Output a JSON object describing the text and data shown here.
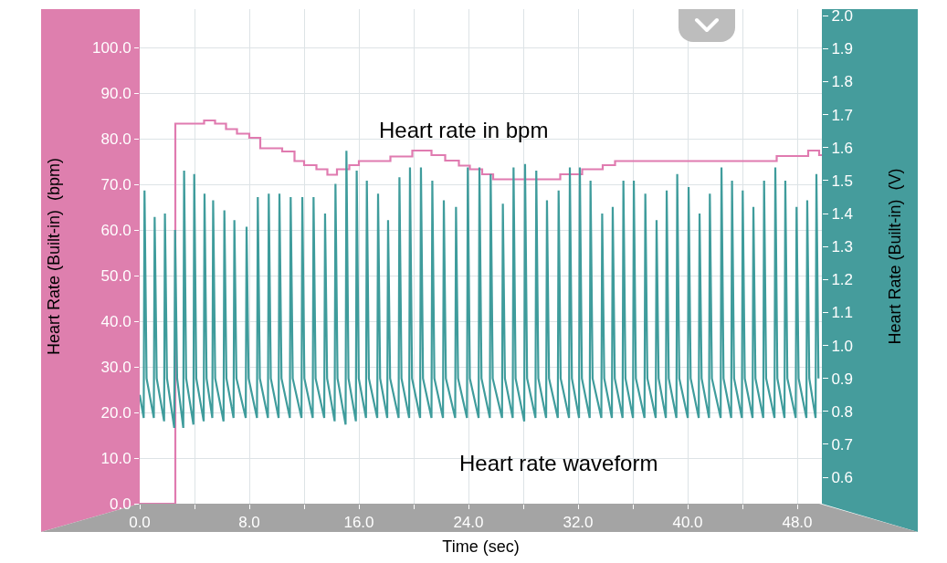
{
  "chart_data": {
    "type": "line",
    "xlabel": "Time (sec)",
    "ylabel": "Heart Rate (Built-in)  (bpm)",
    "y2label": "Heart Rate (Built-in)  (V)",
    "annotations": [
      "Heart rate in bpm",
      "Heart rate waveform"
    ],
    "xlim": [
      0,
      49.8
    ],
    "ylim": [
      0,
      108.4
    ],
    "y2lim": [
      0.52,
      2.02
    ],
    "xticks": [
      {
        "value": 0,
        "label": "0.0"
      },
      {
        "value": 4,
        "label": null
      },
      {
        "value": 8,
        "label": "8.0"
      },
      {
        "value": 12,
        "label": null
      },
      {
        "value": 16,
        "label": "16.0"
      },
      {
        "value": 20,
        "label": null
      },
      {
        "value": 24,
        "label": "24.0"
      },
      {
        "value": 28,
        "label": null
      },
      {
        "value": 32,
        "label": "32.0"
      },
      {
        "value": 36,
        "label": null
      },
      {
        "value": 40,
        "label": "40.0"
      },
      {
        "value": 44,
        "label": null
      },
      {
        "value": 48,
        "label": "48.0"
      }
    ],
    "yticks": [
      {
        "value": 0,
        "label": "0.0"
      },
      {
        "value": 10,
        "label": "10.0"
      },
      {
        "value": 20,
        "label": "20.0"
      },
      {
        "value": 30,
        "label": "30.0"
      },
      {
        "value": 40,
        "label": "40.0"
      },
      {
        "value": 50,
        "label": "50.0"
      },
      {
        "value": 60,
        "label": "60.0"
      },
      {
        "value": 70,
        "label": "70.0"
      },
      {
        "value": 80,
        "label": "80.0"
      },
      {
        "value": 90,
        "label": "90.0"
      },
      {
        "value": 100,
        "label": "100.0"
      }
    ],
    "y2ticks": [
      0.6,
      0.7,
      0.8,
      0.9,
      {
        "value": 1,
        "label": "1.0"
      },
      1.1,
      1.2,
      1.3,
      1.4,
      1.5,
      1.6,
      1.7,
      1.8,
      1.9,
      {
        "value": 2,
        "label": "2.0"
      }
    ],
    "grid": true,
    "marker": "none",
    "line_style": "solid",
    "series": [
      {
        "type": "step",
        "color": "#e07bb0",
        "x": [
          0,
          2.6,
          4.7,
          5.5,
          6.3,
          7.1,
          8.0,
          8.8,
          10.4,
          11.3,
          12.0,
          12.9,
          13.7,
          14.4,
          15.3,
          16.0,
          18.3,
          19.9,
          21.3,
          22.3,
          23.3,
          24.1,
          25.0,
          25.8,
          30.7,
          32.3,
          33.8,
          34.7,
          46.5,
          48.8,
          49.6,
          49.8
        ],
        "values": [
          0,
          83.3,
          84.0,
          83.3,
          82.1,
          81.1,
          80.2,
          77.9,
          77.2,
          75.1,
          74.2,
          73.3,
          72.1,
          73.3,
          74.2,
          75.1,
          76.1,
          77.4,
          76.4,
          75.2,
          74.1,
          73.3,
          72.2,
          71.1,
          72.2,
          73.3,
          74.2,
          75.1,
          76.2,
          77.4,
          76.4,
          76.4
        ]
      },
      {
        "axis": "y2",
        "color": "#3f9c9c",
        "x": [
          0,
          0.29,
          0.35,
          0.5,
          1.03,
          1.09,
          1.24,
          1.78,
          1.84,
          1.99,
          2.52,
          2.58,
          2.73,
          3.18,
          3.24,
          3.39,
          3.92,
          3.98,
          4.13,
          4.67,
          4.73,
          4.88,
          5.3,
          5.36,
          5.51,
          6.12,
          6.18,
          6.33,
          6.85,
          6.91,
          7.06,
          7.74,
          7.8,
          7.95,
          8.56,
          8.62,
          8.77,
          9.36,
          9.42,
          9.57,
          10.14,
          10.2,
          10.35,
          10.96,
          11.02,
          11.17,
          11.81,
          11.87,
          12.02,
          12.63,
          12.69,
          12.84,
          13.47,
          13.53,
          13.68,
          14.23,
          14.29,
          14.44,
          15.03,
          15.09,
          15.24,
          15.78,
          15.84,
          15.99,
          16.52,
          16.58,
          16.73,
          17.34,
          17.4,
          17.55,
          18.07,
          18.13,
          18.28,
          18.9,
          18.96,
          19.11,
          19.67,
          19.73,
          19.88,
          20.47,
          20.53,
          20.68,
          21.3,
          21.36,
          21.51,
          22.14,
          22.2,
          22.35,
          23.03,
          23.09,
          23.24,
          23.89,
          23.95,
          24.1,
          24.74,
          24.8,
          24.95,
          25.56,
          25.62,
          25.77,
          26.45,
          26.51,
          26.66,
          27.23,
          27.29,
          27.44,
          28.07,
          28.13,
          28.28,
          28.89,
          28.95,
          29.1,
          29.67,
          29.73,
          29.88,
          30.52,
          30.58,
          30.73,
          31.34,
          31.4,
          31.55,
          32.07,
          32.13,
          32.28,
          32.85,
          32.91,
          33.06,
          33.7,
          33.76,
          33.91,
          34.47,
          34.53,
          34.68,
          35.25,
          35.31,
          35.46,
          36.01,
          36.07,
          36.22,
          36.85,
          36.91,
          37.06,
          37.67,
          37.73,
          37.88,
          38.41,
          38.47,
          38.62,
          39.18,
          39.24,
          39.39,
          40.01,
          40.07,
          40.22,
          40.81,
          40.87,
          41.02,
          41.56,
          41.62,
          41.77,
          42.41,
          42.47,
          42.62,
          43.18,
          43.24,
          43.39,
          43.96,
          44.02,
          44.17,
          44.74,
          44.8,
          44.95,
          45.52,
          45.58,
          45.73,
          46.34,
          46.4,
          46.55,
          47.07,
          47.13,
          47.28,
          47.89,
          47.95,
          48.1,
          48.67,
          48.73,
          48.88,
          49.34,
          49.4,
          49.55
        ],
        "values": [
          0.85,
          0.78,
          1.47,
          0.9,
          0.78,
          1.39,
          0.9,
          0.77,
          1.4,
          0.9,
          0.75,
          1.35,
          0.9,
          0.75,
          1.53,
          0.9,
          0.76,
          1.52,
          0.9,
          0.77,
          1.46,
          0.9,
          0.78,
          1.44,
          0.9,
          0.77,
          1.41,
          0.9,
          0.78,
          1.38,
          0.9,
          0.78,
          1.36,
          0.9,
          0.78,
          1.45,
          0.9,
          0.78,
          1.46,
          0.9,
          0.78,
          1.46,
          0.9,
          0.78,
          1.45,
          0.9,
          0.78,
          1.45,
          0.9,
          0.78,
          1.45,
          0.9,
          0.78,
          1.4,
          0.9,
          0.77,
          1.49,
          0.9,
          0.76,
          1.59,
          0.9,
          0.77,
          1.53,
          0.9,
          0.78,
          1.5,
          0.9,
          0.78,
          1.46,
          0.9,
          0.78,
          1.38,
          0.9,
          0.78,
          1.51,
          0.9,
          0.78,
          1.54,
          0.9,
          0.78,
          1.54,
          0.9,
          0.78,
          1.5,
          0.9,
          0.78,
          1.44,
          0.9,
          0.78,
          1.42,
          0.9,
          0.78,
          1.54,
          0.9,
          0.78,
          1.54,
          0.9,
          0.78,
          1.52,
          0.9,
          0.78,
          1.43,
          0.9,
          0.78,
          1.54,
          0.9,
          0.77,
          1.55,
          0.9,
          0.78,
          1.53,
          0.9,
          0.78,
          1.44,
          0.9,
          0.78,
          1.47,
          0.9,
          0.78,
          1.54,
          0.9,
          0.78,
          1.54,
          0.9,
          0.78,
          1.5,
          0.9,
          0.78,
          1.4,
          0.9,
          0.78,
          1.42,
          0.9,
          0.78,
          1.5,
          0.9,
          0.78,
          1.5,
          0.9,
          0.78,
          1.46,
          0.9,
          0.78,
          1.38,
          0.9,
          0.78,
          1.47,
          0.9,
          0.78,
          1.52,
          0.9,
          0.78,
          1.48,
          0.9,
          0.78,
          1.4,
          0.9,
          0.78,
          1.46,
          0.9,
          0.78,
          1.54,
          0.9,
          0.78,
          1.5,
          0.9,
          0.78,
          1.47,
          0.9,
          0.78,
          1.42,
          0.9,
          0.78,
          1.5,
          0.9,
          0.78,
          1.54,
          0.9,
          0.78,
          1.5,
          0.9,
          0.78,
          1.42,
          0.9,
          0.78,
          1.44,
          0.9,
          0.78,
          1.52,
          0.9
        ]
      }
    ]
  }
}
